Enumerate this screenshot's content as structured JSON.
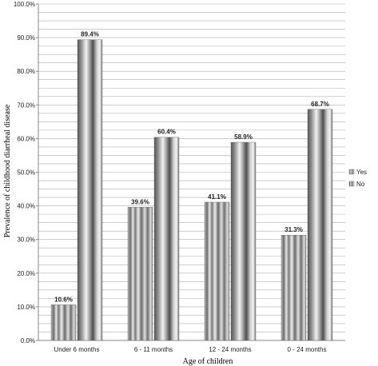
{
  "chart_data": {
    "type": "bar",
    "categories": [
      "Under 6 months",
      "6 - 11 months",
      "12 - 24 months",
      "0 - 24 months"
    ],
    "series": [
      {
        "name": "Yes",
        "values": [
          10.6,
          39.6,
          41.1,
          31.3
        ],
        "labels": [
          "10.6%",
          "39.6%",
          "41.1%",
          "31.3%"
        ]
      },
      {
        "name": "No",
        "values": [
          89.4,
          60.4,
          58.9,
          68.7
        ],
        "labels": [
          "89.4%",
          "60.4%",
          "58.9%",
          "68.7%"
        ]
      }
    ],
    "yticks": [
      "0.0%",
      "10.0%",
      "20.0%",
      "30.0%",
      "40.0%",
      "50.0%",
      "60.0%",
      "70.0%",
      "80.0%",
      "90.0%",
      "100.0%"
    ],
    "ylim": [
      0,
      100
    ],
    "xlabel": "Age of children",
    "ylabel": "Prevalence of childhood diarrheal disease",
    "legend_position": "right",
    "grid": true,
    "colors": {
      "grid": "#b0b0b0",
      "axis": "#888888",
      "bar_dark": "#5a5a5a",
      "bar_light": "#e6e6e6"
    }
  }
}
